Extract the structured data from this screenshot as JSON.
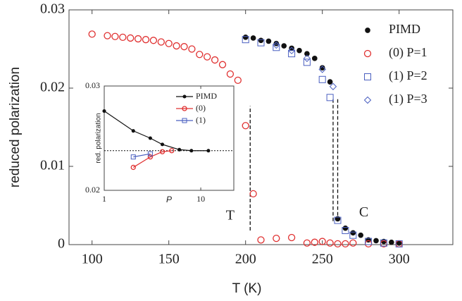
{
  "chart_data": [
    {
      "type": "scatter",
      "xlabel": "T (K)",
      "ylabel": "reduced polarization",
      "xlim": [
        85,
        335
      ],
      "ylim": [
        0,
        0.03
      ],
      "xticks": [
        100,
        150,
        200,
        250,
        300
      ],
      "yticks": [
        0,
        0.01,
        0.02,
        0.03
      ],
      "annotations": [
        {
          "text": "T",
          "x": 190,
          "y": 0.0036
        },
        {
          "text": "C",
          "x": 277,
          "y": 0.004
        }
      ],
      "vlines": [
        {
          "x": 203,
          "y": [
            0.0018,
            0.0177
          ]
        },
        {
          "x": 257,
          "y": [
            0.003,
            0.0188
          ]
        },
        {
          "x": 260,
          "y": [
            0.003,
            0.0188
          ]
        }
      ],
      "series": [
        {
          "name": "PIMD",
          "color": "#111111",
          "marker": "dot",
          "x": [
            200,
            205,
            210,
            215,
            220,
            225,
            230,
            235,
            240,
            245,
            250,
            255,
            260,
            265,
            270,
            275,
            280,
            285,
            290,
            295,
            300
          ],
          "values": [
            0.0265,
            0.0264,
            0.0261,
            0.026,
            0.0257,
            0.0254,
            0.0251,
            0.0248,
            0.0244,
            0.0238,
            0.0226,
            0.0208,
            0.0033,
            0.0021,
            0.0015,
            0.0012,
            0.0006,
            0.0005,
            0.0004,
            0.0003,
            0.0002
          ]
        },
        {
          "name": "(0) P=1",
          "color": "#e03030",
          "marker": "circle",
          "x": [
            100,
            110,
            115,
            120,
            125,
            130,
            135,
            140,
            145,
            150,
            155,
            160,
            165,
            170,
            175,
            180,
            185,
            190,
            195,
            200,
            205,
            210,
            220,
            230,
            240,
            245,
            250,
            255,
            260,
            265,
            270,
            280,
            290,
            300
          ],
          "values": [
            0.0269,
            0.0267,
            0.0266,
            0.0265,
            0.0264,
            0.0263,
            0.0262,
            0.0261,
            0.0259,
            0.0257,
            0.0254,
            0.0253,
            0.025,
            0.0243,
            0.024,
            0.0236,
            0.023,
            0.0218,
            0.021,
            0.0152,
            0.0065,
            0.0006,
            0.0008,
            0.0009,
            0.0002,
            0.0003,
            0.0004,
            0.0002,
            0.0001,
            0.0001,
            0.0002,
            0.0001,
            0.0001,
            0.0001
          ]
        },
        {
          "name": "(1) P=2",
          "color": "#4a5fc0",
          "marker": "square",
          "x": [
            200,
            210,
            220,
            230,
            240,
            250,
            255,
            260,
            265,
            270,
            280,
            290,
            300
          ],
          "values": [
            0.0262,
            0.0258,
            0.0252,
            0.0244,
            0.0233,
            0.0211,
            0.0188,
            0.0031,
            0.0018,
            0.0012,
            0.0004,
            0.0002,
            0.0001
          ]
        },
        {
          "name": "(1) P=3",
          "color": "#4a5fc0",
          "marker": "diamond",
          "x": [
            220,
            230,
            240,
            250,
            257
          ],
          "values": [
            0.0255,
            0.0248,
            0.0238,
            0.0224,
            0.0202
          ]
        }
      ]
    },
    {
      "type": "line",
      "xlabel": "P",
      "ylabel": "red. polarization",
      "xscale": "log",
      "xlim": [
        1,
        22
      ],
      "ylim": [
        0.02,
        0.03
      ],
      "xticks": [
        1,
        10
      ],
      "yticks": [
        0.02,
        0.03
      ],
      "hline": 0.0238,
      "series": [
        {
          "name": "PIMD",
          "color": "#111111",
          "marker": "dot",
          "x": [
            1,
            2,
            3,
            4,
            6,
            8,
            12
          ],
          "values": [
            0.0276,
            0.0257,
            0.025,
            0.0244,
            0.0239,
            0.0238,
            0.0238
          ]
        },
        {
          "name": "(0)",
          "color": "#e03030",
          "marker": "circle",
          "x": [
            2,
            3,
            4,
            5
          ],
          "values": [
            0.0222,
            0.0232,
            0.0237,
            0.0238
          ]
        },
        {
          "name": "(1)",
          "color": "#4a5fc0",
          "marker": "square",
          "x": [
            2,
            3
          ],
          "values": [
            0.0232,
            0.0235
          ]
        }
      ]
    }
  ]
}
